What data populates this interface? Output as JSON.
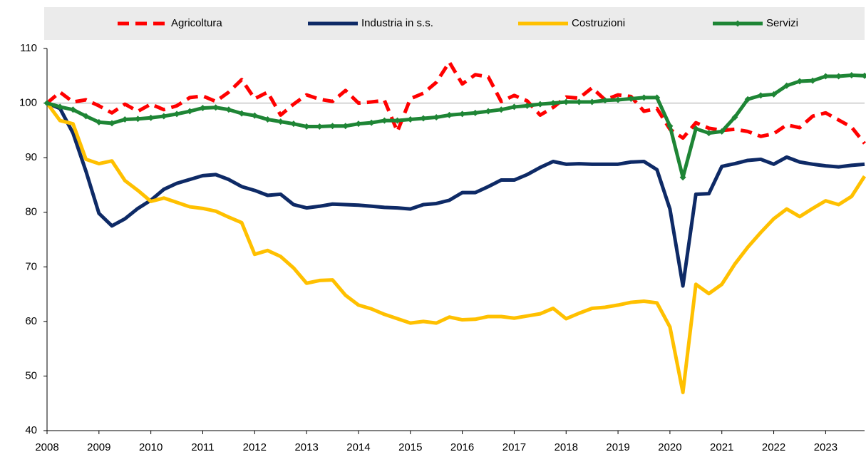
{
  "chart_data": {
    "type": "line",
    "x": [
      2008,
      2008.25,
      2008.5,
      2008.75,
      2009,
      2009.25,
      2009.5,
      2009.75,
      2010,
      2010.25,
      2010.5,
      2010.75,
      2011,
      2011.25,
      2011.5,
      2011.75,
      2012,
      2012.25,
      2012.5,
      2012.75,
      2013,
      2013.25,
      2013.5,
      2013.75,
      2014,
      2014.25,
      2014.5,
      2014.75,
      2015,
      2015.25,
      2015.5,
      2015.75,
      2016,
      2016.25,
      2016.5,
      2016.75,
      2017,
      2017.25,
      2017.5,
      2017.75,
      2018,
      2018.25,
      2018.5,
      2018.75,
      2019,
      2019.25,
      2019.5,
      2019.75,
      2020,
      2020.25,
      2020.5,
      2020.75,
      2021,
      2021.25,
      2021.5,
      2021.75,
      2022,
      2022.25,
      2022.5,
      2022.75,
      2023,
      2023.25,
      2023.5,
      2023.75
    ],
    "series": [
      {
        "name": "Agricoltura",
        "color": "#ff0000",
        "dash": true,
        "markers": false,
        "values": [
          100,
          102,
          100.2,
          100.6,
          99.5,
          98.2,
          99.8,
          98.5,
          99.8,
          98.8,
          99.5,
          101,
          101.3,
          100.3,
          102,
          104.3,
          100.8,
          102,
          97.8,
          99.8,
          101.5,
          100.7,
          100.3,
          102.3,
          100,
          100.2,
          100.5,
          94.8,
          100.8,
          101.8,
          103.8,
          107.5,
          103.5,
          105.2,
          104.8,
          100.3,
          101.4,
          100.4,
          97.8,
          99.2,
          101.1,
          100.9,
          102.8,
          100.6,
          101.5,
          101.2,
          98.5,
          99,
          95.2,
          93.6,
          96.4,
          95.4,
          95,
          95.2,
          94.8,
          93.9,
          94.4,
          96,
          95.5,
          97.6,
          98.2,
          96.9,
          95.6,
          92.6
        ]
      },
      {
        "name": "Industria in s.s.",
        "color": "#0e2a66",
        "dash": false,
        "markers": false,
        "values": [
          100,
          99,
          94.5,
          87.5,
          79.8,
          77.5,
          78.8,
          80.7,
          82.2,
          84.2,
          85.3,
          86,
          86.7,
          86.9,
          86,
          84.7,
          84,
          83.1,
          83.3,
          81.4,
          80.8,
          81.1,
          81.5,
          81.4,
          81.3,
          81.1,
          80.9,
          80.8,
          80.6,
          81.4,
          81.6,
          82.2,
          83.6,
          83.6,
          84.7,
          85.9,
          85.9,
          86.9,
          88.2,
          89.3,
          88.8,
          88.9,
          88.8,
          88.8,
          88.8,
          89.2,
          89.3,
          87.8,
          80.6,
          66.5,
          83.3,
          83.4,
          88.4,
          88.9,
          89.5,
          89.7,
          88.8,
          90.1,
          89.2,
          88.8,
          88.5,
          88.3,
          88.6,
          88.8
        ]
      },
      {
        "name": "Costruzioni",
        "color": "#ffc000",
        "dash": false,
        "markers": false,
        "values": [
          100,
          96.8,
          96.2,
          89.7,
          88.9,
          89.4,
          85.8,
          84,
          82,
          82.6,
          81.8,
          81,
          80.7,
          80.2,
          79.1,
          78.1,
          72.3,
          73,
          71.9,
          69.8,
          67,
          67.5,
          67.6,
          64.8,
          63,
          62.3,
          61.3,
          60.5,
          59.7,
          60,
          59.7,
          60.8,
          60.3,
          60.4,
          60.9,
          60.9,
          60.6,
          61,
          61.4,
          62.4,
          60.5,
          61.5,
          62.4,
          62.6,
          63,
          63.5,
          63.7,
          63.4,
          59,
          47,
          66.8,
          65.1,
          66.8,
          70.5,
          73.6,
          76.3,
          78.8,
          80.6,
          79.2,
          80.7,
          82.1,
          81.4,
          82.9,
          86.6
        ]
      },
      {
        "name": "Servizi",
        "color": "#1e8535",
        "dash": false,
        "markers": true,
        "values": [
          100,
          99.3,
          98.8,
          97.6,
          96.5,
          96.3,
          97,
          97.1,
          97.3,
          97.6,
          98,
          98.5,
          99.1,
          99.2,
          98.8,
          98.1,
          97.7,
          97,
          96.6,
          96.2,
          95.7,
          95.7,
          95.8,
          95.8,
          96.2,
          96.4,
          96.8,
          96.8,
          97,
          97.2,
          97.4,
          97.8,
          98,
          98.2,
          98.5,
          98.8,
          99.3,
          99.5,
          99.8,
          100,
          100.2,
          100.2,
          100.2,
          100.5,
          100.6,
          100.8,
          101,
          101,
          95.8,
          86.4,
          95.3,
          94.5,
          94.8,
          97.4,
          100.7,
          101.4,
          101.6,
          103.2,
          104,
          104.1,
          104.9,
          104.9,
          105.1,
          105
        ]
      }
    ],
    "xlim": [
      2008,
      2023.75
    ],
    "xticks": [
      2008,
      2009,
      2010,
      2011,
      2012,
      2013,
      2014,
      2015,
      2016,
      2017,
      2018,
      2019,
      2020,
      2021,
      2022,
      2023
    ],
    "ylim": [
      40,
      110
    ],
    "yticks": [
      40,
      50,
      60,
      70,
      80,
      90,
      100,
      110
    ],
    "hline": 100,
    "legend": "top"
  }
}
